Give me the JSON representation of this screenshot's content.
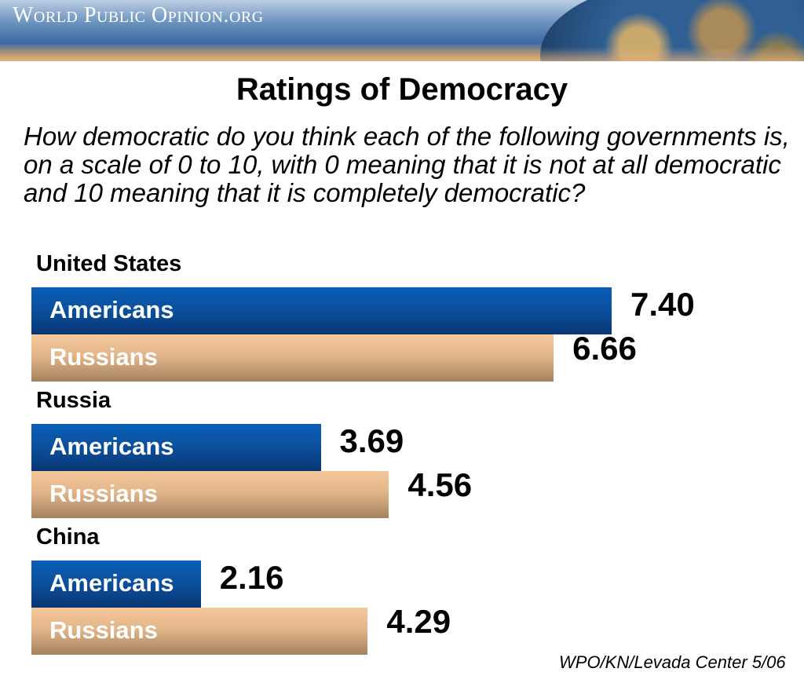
{
  "header": {
    "logo_text": "World Public Opinion.org"
  },
  "chart_data": {
    "type": "bar",
    "orientation": "horizontal",
    "title": "Ratings of Democracy",
    "subtitle": "How democratic do you think each of the following governments is, on a scale of 0 to 10, with 0 meaning that it is not at all democratic and 10 meaning that it is completely democratic?",
    "categories": [
      "United States",
      "Russia",
      "China"
    ],
    "series": [
      {
        "name": "Americans",
        "values": [
          7.4,
          3.69,
          2.16
        ],
        "labels": [
          "7.40",
          "3.69",
          "2.16"
        ],
        "color": "#0b4f9c"
      },
      {
        "name": "Russians",
        "values": [
          6.66,
          4.56,
          4.29
        ],
        "labels": [
          "6.66",
          "4.56",
          "4.29"
        ],
        "color": "#e3b68a"
      }
    ],
    "xlim": [
      0,
      10
    ],
    "grid": false,
    "source": "WPO/KN/Levada Center 5/06"
  }
}
